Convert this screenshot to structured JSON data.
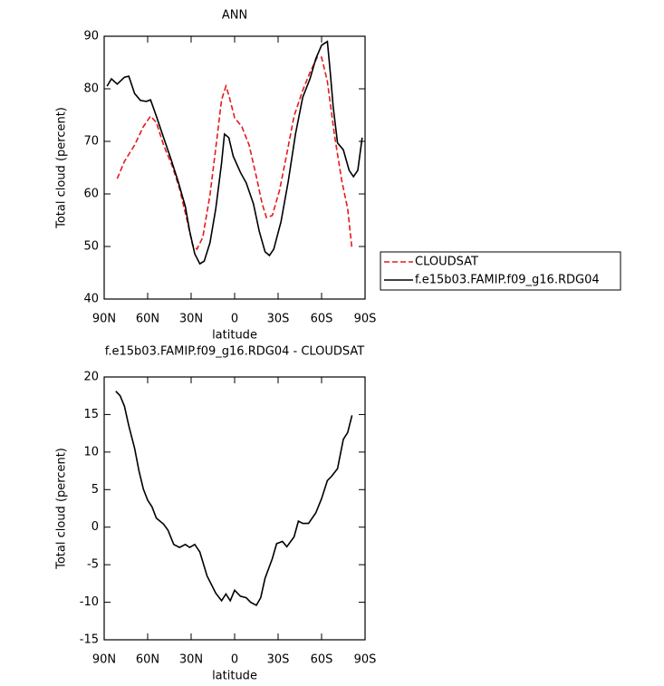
{
  "chart_data": [
    {
      "type": "line",
      "title": "ANN",
      "xlabel": "latitude",
      "ylabel": "Total cloud (percent)",
      "xlim": [
        90,
        -90
      ],
      "xticks": [
        {
          "value": 90,
          "label": "90N"
        },
        {
          "value": 60,
          "label": "60N"
        },
        {
          "value": 30,
          "label": "30N"
        },
        0,
        {
          "value": -30,
          "label": "30S"
        },
        {
          "value": -60,
          "label": "60S"
        },
        {
          "value": -90,
          "label": "90S"
        }
      ],
      "ylim": [
        40,
        90
      ],
      "yticks": [
        40,
        50,
        60,
        70,
        80,
        90
      ],
      "legend": "right",
      "series": [
        {
          "name": "CLOUDSAT",
          "color": "#e41a1c",
          "dash": true,
          "x": [
            81,
            76,
            69,
            63,
            58,
            54,
            49,
            43,
            38,
            33,
            29,
            26,
            22,
            17,
            12,
            9,
            6,
            4,
            0,
            -5,
            -10,
            -15,
            -19,
            -22,
            -26,
            -31,
            -36,
            -41,
            -47,
            -52,
            -57,
            -60,
            -64,
            -69,
            -74,
            -78,
            -81
          ],
          "values": [
            62.9,
            66.2,
            69.3,
            72.8,
            74.8,
            73.6,
            69.3,
            65.3,
            61,
            55.2,
            50.3,
            49.5,
            51.7,
            59.8,
            71,
            77.9,
            80.5,
            78.8,
            74.5,
            72.8,
            69.3,
            63.3,
            58.1,
            55.5,
            55.9,
            60.7,
            67.6,
            74.8,
            79.7,
            83.1,
            86,
            86,
            81.4,
            71,
            62.4,
            57.2,
            49.5
          ]
        },
        {
          "name": "f.e15b03.FAMIP.f09_g16.RDG04",
          "color": "#000000",
          "dash": false,
          "x": [
            88,
            85,
            81,
            76,
            73,
            69,
            65,
            61,
            58,
            54,
            49,
            44,
            39,
            34,
            31,
            27.5,
            24,
            21,
            17,
            13,
            9,
            7,
            4,
            1,
            -4,
            -8,
            -13,
            -17,
            -21,
            -24,
            -27,
            -32,
            -37,
            -42,
            -47,
            -52,
            -56,
            -60,
            -64,
            -66,
            -68,
            -71,
            -75,
            -79,
            -82,
            -85,
            -88
          ],
          "values": [
            80.5,
            81.9,
            80.9,
            82.2,
            82.4,
            79.1,
            77.8,
            77.6,
            77.9,
            74.8,
            70.7,
            66.7,
            62.4,
            57.6,
            52.9,
            48.6,
            46.7,
            47.2,
            50.7,
            57.2,
            65.9,
            71.4,
            70.7,
            67.2,
            64.1,
            62.1,
            58.1,
            52.9,
            49,
            48.3,
            49.5,
            54.7,
            62.4,
            71.4,
            78.4,
            81.9,
            85.7,
            88.3,
            89,
            83.1,
            76.6,
            69.7,
            68.4,
            64.5,
            63.3,
            64.5,
            70.7
          ]
        }
      ]
    },
    {
      "type": "line",
      "title": "f.e15b03.FAMIP.f09_g16.RDG04 - CLOUDSAT",
      "xlabel": "latitude",
      "ylabel": "Total cloud (percent)",
      "xlim": [
        90,
        -90
      ],
      "xticks": [
        {
          "value": 90,
          "label": "90N"
        },
        {
          "value": 60,
          "label": "60N"
        },
        {
          "value": 30,
          "label": "30N"
        },
        0,
        {
          "value": -30,
          "label": "30S"
        },
        {
          "value": -60,
          "label": "60S"
        },
        {
          "value": -90,
          "label": "90S"
        }
      ],
      "ylim": [
        -15,
        20
      ],
      "yticks": [
        -15,
        -10,
        -5,
        0,
        5,
        10,
        15,
        20
      ],
      "series": [
        {
          "color": "#000000",
          "dash": false,
          "x": [
            82,
            79,
            76,
            73,
            69,
            66,
            63,
            60,
            57,
            54,
            49,
            46,
            42,
            38,
            34,
            31,
            27.5,
            24,
            19,
            13,
            9,
            6,
            3,
            0,
            -4,
            -8,
            -11,
            -15,
            -18,
            -21,
            -26,
            -29,
            -33,
            -36,
            -41,
            -44,
            -47,
            -51,
            -56,
            -60,
            -64,
            -67,
            -71,
            -75,
            -78,
            -81
          ],
          "values": [
            18.1,
            17.5,
            16.1,
            13.5,
            10.5,
            7.5,
            5.1,
            3.6,
            2.7,
            1.2,
            0.4,
            -0.4,
            -2.3,
            -2.7,
            -2.3,
            -2.7,
            -2.3,
            -3.3,
            -6.5,
            -8.8,
            -9.8,
            -8.9,
            -9.8,
            -8.4,
            -9.2,
            -9.4,
            -10,
            -10.4,
            -9.4,
            -6.8,
            -4.2,
            -2.2,
            -1.9,
            -2.6,
            -1.3,
            0.8,
            0.5,
            0.5,
            1.9,
            3.8,
            6.2,
            6.8,
            7.8,
            11.7,
            12.6,
            14.9
          ]
        }
      ]
    }
  ]
}
